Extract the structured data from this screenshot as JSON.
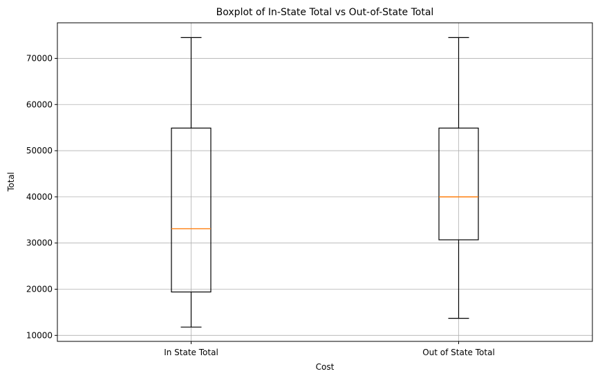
{
  "chart_data": {
    "type": "boxplot",
    "title": "Boxplot of In-State Total vs Out-of-State Total",
    "xlabel": "Cost",
    "ylabel": "Total",
    "ylim": [
      8700,
      77700
    ],
    "yticks": [
      10000,
      20000,
      30000,
      40000,
      50000,
      60000,
      70000
    ],
    "grid": true,
    "categories": [
      "In State Total",
      "Out of State Total"
    ],
    "boxes": [
      {
        "label": "In State Total",
        "whisker_low": 11800,
        "q1": 19400,
        "median": 33100,
        "q3": 54900,
        "whisker_high": 74500
      },
      {
        "label": "Out of State Total",
        "whisker_low": 13700,
        "q1": 30700,
        "median": 40000,
        "q3": 54900,
        "whisker_high": 74500
      }
    ],
    "colors": {
      "box": "#000000",
      "median": "#ff7f0e",
      "grid": "#b0b0b0"
    }
  }
}
